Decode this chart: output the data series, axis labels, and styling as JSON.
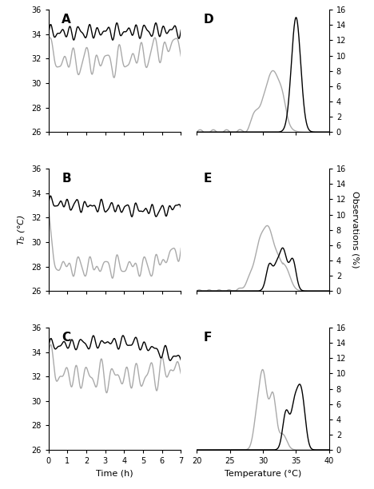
{
  "ylim_left": [
    26,
    36
  ],
  "xlim_left": [
    0,
    7
  ],
  "yticks_left": [
    26,
    28,
    30,
    32,
    34,
    36
  ],
  "xticks_left": [
    0,
    1,
    2,
    3,
    4,
    5,
    6,
    7
  ],
  "xlabel_left": "Time (h)",
  "ylabel_left": "T$_b$ (°C)",
  "ylim_right": [
    0,
    16
  ],
  "xlim_right": [
    20,
    40
  ],
  "yticks_right": [
    0,
    2,
    4,
    6,
    8,
    10,
    12,
    14,
    16
  ],
  "xticks_right": [
    20,
    25,
    30,
    35,
    40
  ],
  "xlabel_right": "Temperature (°C)",
  "ylabel_right": "Observations (%)",
  "panel_labels_left": [
    "A",
    "B",
    "C"
  ],
  "panel_labels_right": [
    "D",
    "E",
    "F"
  ],
  "black_color": "#000000",
  "gray_color": "#aaaaaa",
  "linewidth": 1.0
}
